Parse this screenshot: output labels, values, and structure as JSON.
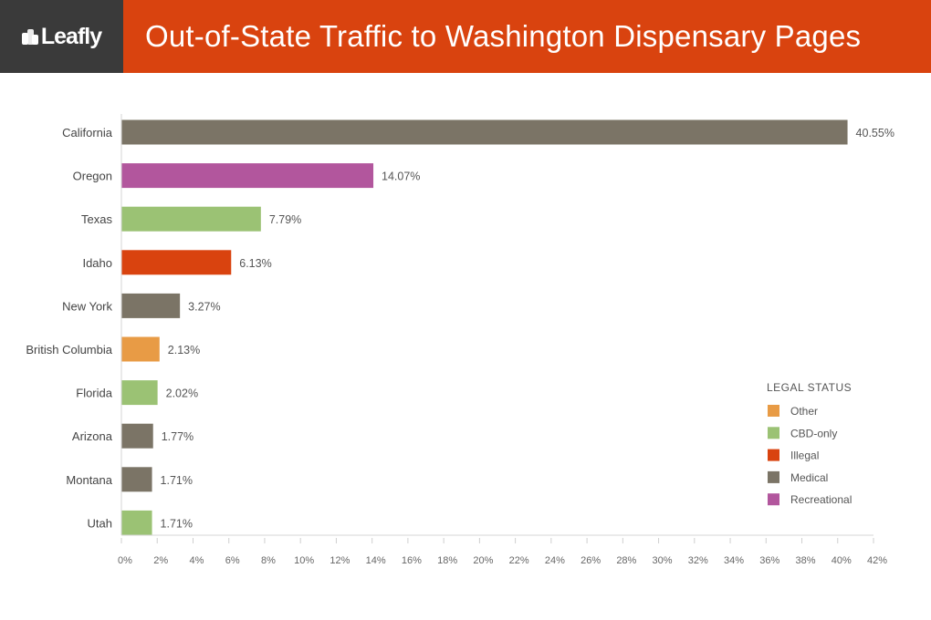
{
  "header": {
    "brand": "Leafly",
    "title": "Out-of-State Traffic to Washington Dispensary Pages"
  },
  "colors": {
    "Other": "#e89b45",
    "CBD-only": "#9bc274",
    "Illegal": "#d9430f",
    "Medical": "#7b7466",
    "Recreational": "#b2569d"
  },
  "chart_data": {
    "type": "bar",
    "orientation": "horizontal",
    "title": "Out-of-State Traffic to Washington Dispensary Pages",
    "xlabel": "",
    "ylabel": "",
    "xlim": [
      0,
      42
    ],
    "x_ticks": [
      "0%",
      "2%",
      "4%",
      "6%",
      "8%",
      "10%",
      "12%",
      "14%",
      "16%",
      "18%",
      "20%",
      "22%",
      "24%",
      "26%",
      "28%",
      "30%",
      "32%",
      "34%",
      "36%",
      "38%",
      "40%",
      "42%"
    ],
    "categories": [
      "California",
      "Oregon",
      "Texas",
      "Idaho",
      "New York",
      "British Columbia",
      "Florida",
      "Arizona",
      "Montana",
      "Utah"
    ],
    "values": [
      40.55,
      14.07,
      7.79,
      6.13,
      3.27,
      2.13,
      2.02,
      1.77,
      1.71,
      1.71
    ],
    "labels": [
      "40.55%",
      "14.07%",
      "7.79%",
      "6.13%",
      "3.27%",
      "2.13%",
      "2.02%",
      "1.77%",
      "1.71%",
      "1.71%"
    ],
    "status": [
      "Medical",
      "Recreational",
      "CBD-only",
      "Illegal",
      "Medical",
      "Other",
      "CBD-only",
      "Medical",
      "Medical",
      "CBD-only"
    ],
    "legend": {
      "title": "LEGAL STATUS",
      "placement": "right",
      "entries": [
        "Other",
        "CBD-only",
        "Illegal",
        "Medical",
        "Recreational"
      ]
    },
    "grid": false
  }
}
